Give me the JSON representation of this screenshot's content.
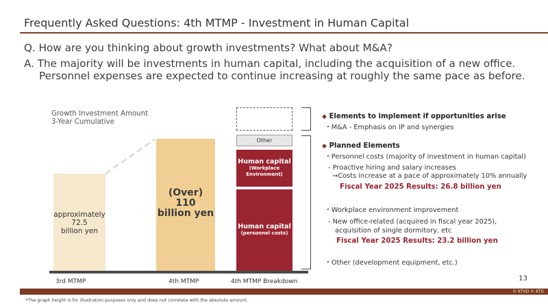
{
  "header": {
    "title": "Frequently Asked Questions: 4th MTMP - Investment in Human Capital"
  },
  "qa": {
    "question": "Q. How are you thinking about growth investments? What about M&A?",
    "answer_line1": "A. The majority will be investments in human capital, including the acquisition of a new office.",
    "answer_line2": "Personnel expenses are expected to continue increasing at roughly the same pace as before."
  },
  "chart": {
    "label_line1": "Growth Investment Amount",
    "label_line2": "3-Year Cumulative",
    "bar_3rd": {
      "line1": "approximately",
      "line2": "72.5",
      "line3": "billion yen"
    },
    "bar_4th": {
      "line1": "(Over)",
      "line2": "110",
      "line3": "billion yen"
    },
    "breakdown": {
      "other": "Other",
      "env_title_line1": "Human capital",
      "env_sub_line1": "(Workplace",
      "env_sub_line2": "Environment)",
      "pers_title": "Human capital",
      "pers_sub": "(personnel costs)"
    },
    "x_labels": [
      "3rd MTMP",
      "4th MTMP",
      "4th MTMP Breakdown"
    ]
  },
  "side": {
    "opp_head": "Elements to implement if opportunities arise",
    "opp_item": "・M&A - Emphasis on IP and synergies",
    "planned_head": "Planned Elements",
    "pc_line": "・Personnel costs (majority of investment in human capital)",
    "pc_sub1": "- Proactive hiring and salary increases",
    "pc_sub2": "→Costs increase at a pace of approximately 10% annually",
    "pc_result": "Fiscal Year 2025 Results: 26.8 billion yen",
    "we_line": "・Workplace environment improvement",
    "we_sub1": "- New office-related (acquired in fiscal year 2025),",
    "we_sub2": "acquisition of single dormitory, etc",
    "we_result": "Fiscal Year 2025 Results: 23.2 billion yen",
    "other_line": "・Other (development equipment, etc.)"
  },
  "footer": {
    "page": "13",
    "copyright": "© KTHD © KTG",
    "note": "*The graph height is for illustration purposes only and does not correlate with the absolute amount."
  }
}
